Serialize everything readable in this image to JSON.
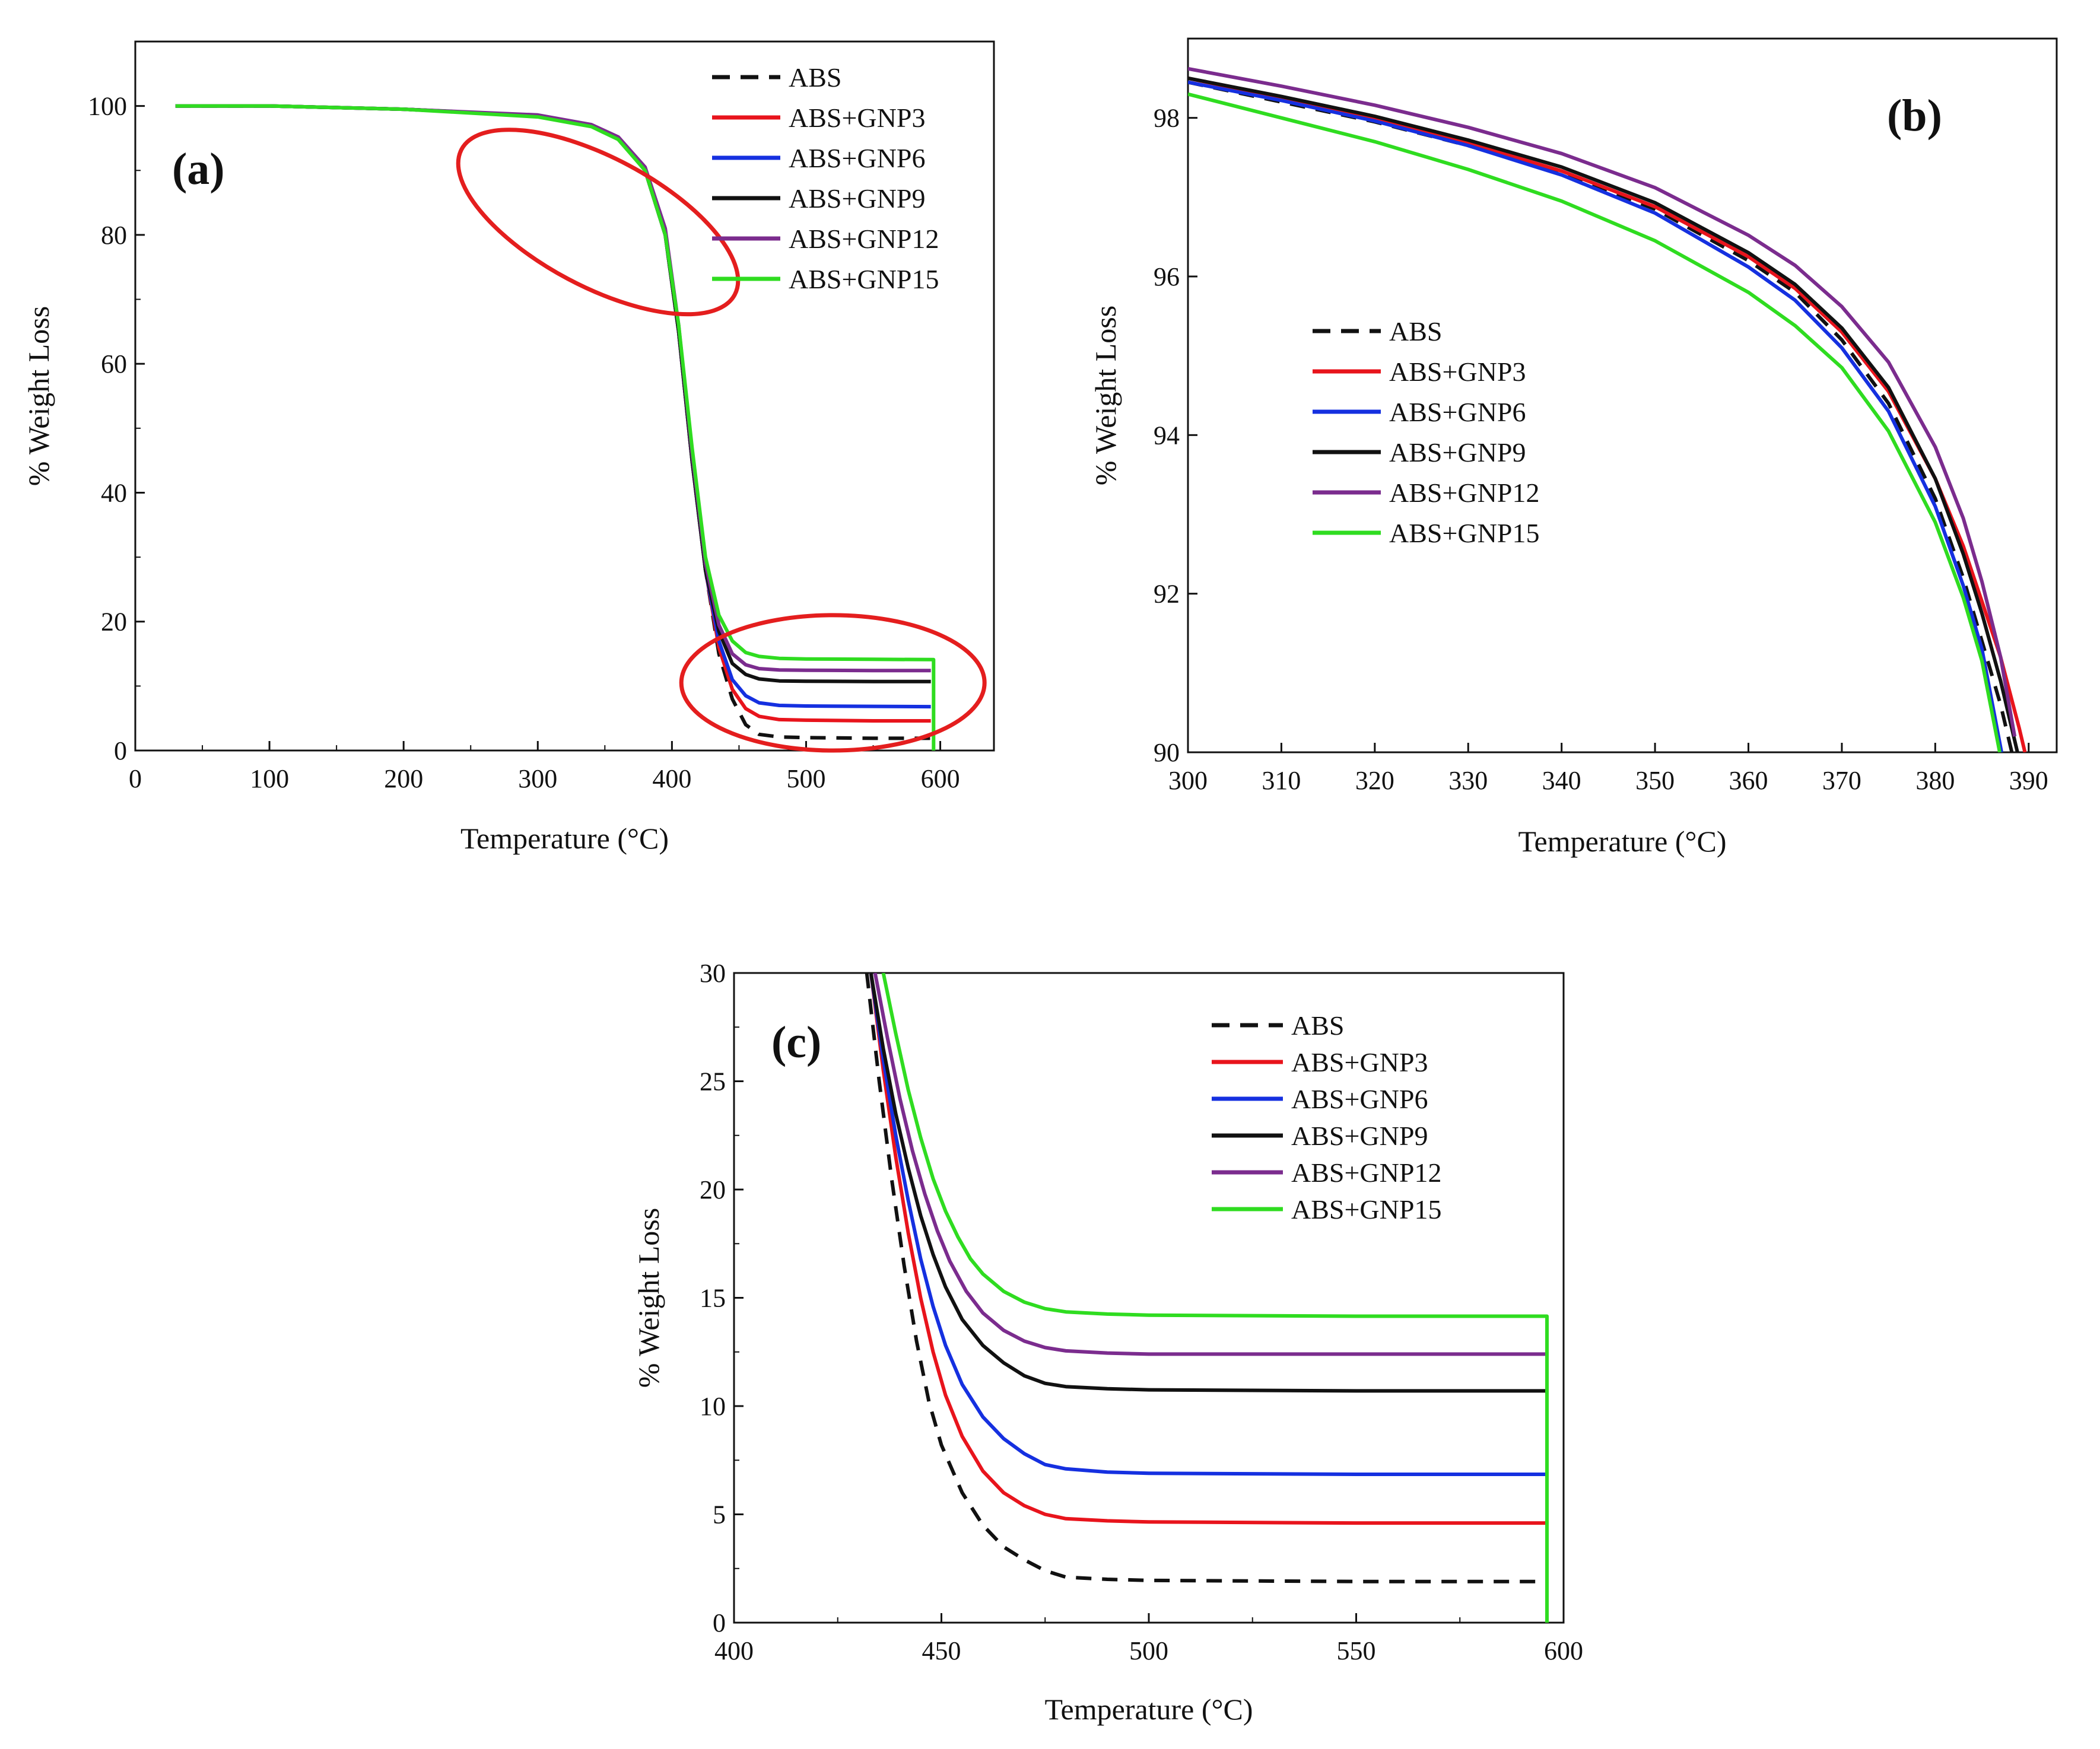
{
  "chart_data": [
    {
      "panel": "a",
      "type": "line",
      "panel_label": "(a)",
      "xlabel": "Temperature (°C)",
      "ylabel": "% Weight Loss",
      "xlim": [
        0,
        640
      ],
      "ylim": [
        0,
        110
      ],
      "xticks": [
        0,
        100,
        200,
        300,
        400,
        500,
        600
      ],
      "yticks": [
        0,
        20,
        40,
        60,
        80,
        100
      ],
      "legend_position": "top-right",
      "annotations": [
        {
          "shape": "ellipse",
          "color": "#e41e1e",
          "note": "onset region",
          "cx": 345,
          "cy": 82,
          "rx": 48,
          "ry": 24,
          "angle_deg": -62
        },
        {
          "shape": "ellipse",
          "color": "#e41e1e",
          "note": "residue region",
          "cx": 520,
          "cy": 10.5,
          "rx": 113,
          "ry": 10.5,
          "angle_deg": 0
        }
      ],
      "series": [
        {
          "name": "ABS",
          "color": "#111111",
          "dash": true,
          "x": [
            30,
            100,
            200,
            300,
            340,
            360,
            380,
            395,
            405,
            415,
            425,
            435,
            445,
            455,
            465,
            480,
            500,
            550,
            593
          ],
          "y": [
            100,
            100,
            99.5,
            98.5,
            97,
            95,
            90,
            80,
            65,
            45,
            28,
            15,
            8,
            4,
            2.5,
            2.1,
            2,
            1.9,
            1.9
          ]
        },
        {
          "name": "ABS+GNP3",
          "color": "#e8141c",
          "dash": false,
          "x": [
            30,
            100,
            200,
            300,
            340,
            360,
            380,
            395,
            405,
            415,
            425,
            435,
            445,
            455,
            465,
            480,
            500,
            550,
            593
          ],
          "y": [
            100,
            100,
            99.5,
            98.5,
            97,
            95,
            90,
            80,
            65,
            45,
            28,
            16,
            9.5,
            6.5,
            5.3,
            4.8,
            4.7,
            4.6,
            4.6
          ]
        },
        {
          "name": "ABS+GNP6",
          "color": "#1530e0",
          "dash": false,
          "x": [
            30,
            100,
            200,
            300,
            340,
            360,
            380,
            395,
            405,
            415,
            425,
            435,
            445,
            455,
            465,
            480,
            500,
            550,
            593
          ],
          "y": [
            100,
            100,
            99.5,
            98.5,
            97,
            95,
            90,
            80,
            65,
            45,
            28,
            17,
            11,
            8.5,
            7.4,
            7,
            6.9,
            6.85,
            6.8
          ]
        },
        {
          "name": "ABS+GNP9",
          "color": "#111111",
          "dash": false,
          "x": [
            30,
            100,
            200,
            300,
            340,
            360,
            380,
            395,
            405,
            415,
            425,
            435,
            445,
            455,
            465,
            480,
            500,
            550,
            593
          ],
          "y": [
            100,
            100,
            99.5,
            98.5,
            97,
            95,
            90,
            80,
            65,
            45,
            28,
            18.5,
            13.5,
            11.8,
            11.1,
            10.8,
            10.75,
            10.7,
            10.7
          ]
        },
        {
          "name": "ABS+GNP12",
          "color": "#7b2c8e",
          "dash": false,
          "x": [
            30,
            100,
            200,
            300,
            340,
            360,
            380,
            395,
            405,
            415,
            425,
            435,
            445,
            455,
            465,
            480,
            500,
            550,
            593
          ],
          "y": [
            100,
            100,
            99.5,
            98.6,
            97.1,
            95.2,
            90.5,
            81,
            66,
            46,
            29,
            19.5,
            15,
            13.3,
            12.7,
            12.5,
            12.45,
            12.4,
            12.4
          ]
        },
        {
          "name": "ABS+GNP15",
          "color": "#2fdc20",
          "dash": false,
          "x": [
            30,
            100,
            200,
            300,
            340,
            360,
            380,
            395,
            405,
            415,
            425,
            435,
            445,
            455,
            465,
            480,
            500,
            550,
            595,
            595
          ],
          "y": [
            100,
            100,
            99.5,
            98.3,
            96.8,
            94.8,
            90,
            80,
            66,
            47,
            30,
            21,
            17,
            15.2,
            14.6,
            14.3,
            14.2,
            14.15,
            14.1,
            0
          ]
        }
      ]
    },
    {
      "panel": "b",
      "type": "line",
      "panel_label": "(b)",
      "xlabel": "Temperature (°C)",
      "ylabel": "% Weight Loss",
      "xlim": [
        300,
        393
      ],
      "ylim": [
        90,
        99
      ],
      "xticks": [
        300,
        310,
        320,
        330,
        340,
        350,
        360,
        370,
        380,
        390
      ],
      "yticks": [
        90,
        92,
        94,
        96,
        98
      ],
      "legend_position": "center-left",
      "series": [
        {
          "name": "ABS",
          "color": "#111111",
          "dash": true,
          "x": [
            300,
            310,
            320,
            330,
            340,
            350,
            360,
            365,
            370,
            375,
            380,
            383,
            385,
            387,
            388.2
          ],
          "y": [
            98.45,
            98.2,
            97.95,
            97.65,
            97.3,
            96.85,
            96.2,
            95.8,
            95.2,
            94.4,
            93.2,
            92.2,
            91.4,
            90.6,
            90
          ]
        },
        {
          "name": "ABS+GNP3",
          "color": "#e8141c",
          "dash": false,
          "x": [
            300,
            310,
            320,
            330,
            340,
            350,
            360,
            365,
            370,
            375,
            380,
            383,
            385,
            387,
            389,
            389.6
          ],
          "y": [
            98.5,
            98.25,
            97.98,
            97.68,
            97.33,
            96.88,
            96.25,
            95.85,
            95.3,
            94.55,
            93.45,
            92.6,
            91.9,
            91.2,
            90.3,
            90
          ]
        },
        {
          "name": "ABS+GNP6",
          "color": "#1530e0",
          "dash": false,
          "x": [
            300,
            310,
            320,
            330,
            340,
            350,
            360,
            365,
            370,
            375,
            380,
            383,
            385,
            387.1
          ],
          "y": [
            98.45,
            98.22,
            97.96,
            97.65,
            97.28,
            96.8,
            96.12,
            95.7,
            95.1,
            94.3,
            93.1,
            92.1,
            91.3,
            90
          ]
        },
        {
          "name": "ABS+GNP9",
          "color": "#111111",
          "dash": false,
          "x": [
            300,
            310,
            320,
            330,
            340,
            350,
            360,
            365,
            370,
            375,
            380,
            383,
            385,
            387,
            388.8
          ],
          "y": [
            98.5,
            98.27,
            98.02,
            97.72,
            97.38,
            96.93,
            96.3,
            95.9,
            95.35,
            94.6,
            93.45,
            92.5,
            91.75,
            90.9,
            90
          ]
        },
        {
          "name": "ABS+GNP12",
          "color": "#7b2c8e",
          "dash": false,
          "x": [
            300,
            310,
            320,
            330,
            340,
            350,
            360,
            365,
            370,
            375,
            380,
            383,
            385,
            387,
            388.5
          ],
          "y": [
            98.62,
            98.4,
            98.16,
            97.88,
            97.55,
            97.12,
            96.52,
            96.14,
            95.62,
            94.92,
            93.85,
            92.95,
            92.15,
            91.2,
            90.2
          ]
        },
        {
          "name": "ABS+GNP15",
          "color": "#2fdc20",
          "dash": false,
          "x": [
            300,
            310,
            320,
            330,
            340,
            350,
            360,
            365,
            370,
            375,
            380,
            383,
            385,
            386.9
          ],
          "y": [
            98.3,
            98.0,
            97.7,
            97.35,
            96.95,
            96.45,
            95.8,
            95.38,
            94.85,
            94.05,
            92.9,
            91.95,
            91.15,
            90
          ]
        }
      ]
    },
    {
      "panel": "c",
      "type": "line",
      "panel_label": "(c)",
      "xlabel": "Temperature (°C)",
      "ylabel": "% Weight Loss",
      "xlim": [
        400,
        600
      ],
      "ylim": [
        0,
        30
      ],
      "xticks": [
        400,
        450,
        500,
        550,
        600
      ],
      "yticks": [
        0,
        5,
        10,
        15,
        20,
        25,
        30
      ],
      "legend_position": "top-right",
      "series": [
        {
          "name": "ABS",
          "color": "#111111",
          "dash": true,
          "x": [
            432,
            435,
            438,
            441,
            444,
            447,
            450,
            455,
            460,
            465,
            470,
            475,
            480,
            490,
            500,
            550,
            596
          ],
          "y": [
            30,
            25,
            20.5,
            16.5,
            13,
            10.2,
            8.2,
            6,
            4.5,
            3.5,
            2.9,
            2.4,
            2.1,
            2,
            1.95,
            1.9,
            1.9
          ]
        },
        {
          "name": "ABS+GNP3",
          "color": "#e8141c",
          "dash": false,
          "x": [
            433,
            436,
            439,
            442,
            445,
            448,
            451,
            455,
            460,
            465,
            470,
            475,
            480,
            490,
            500,
            550,
            596
          ],
          "y": [
            30,
            25.5,
            21.5,
            18,
            15,
            12.5,
            10.5,
            8.6,
            7,
            6,
            5.4,
            5,
            4.8,
            4.7,
            4.65,
            4.6,
            4.6
          ]
        },
        {
          "name": "ABS+GNP6",
          "color": "#1530e0",
          "dash": false,
          "x": [
            433,
            436,
            439,
            442,
            445,
            448,
            451,
            455,
            460,
            465,
            470,
            475,
            480,
            490,
            500,
            550,
            596
          ],
          "y": [
            30,
            26,
            22.5,
            19.5,
            16.8,
            14.6,
            12.8,
            11,
            9.5,
            8.5,
            7.8,
            7.3,
            7.1,
            6.95,
            6.9,
            6.85,
            6.85
          ]
        },
        {
          "name": "ABS+GNP9",
          "color": "#111111",
          "dash": false,
          "x": [
            433,
            436,
            439,
            442,
            445,
            448,
            451,
            455,
            460,
            465,
            470,
            475,
            480,
            490,
            500,
            550,
            596
          ],
          "y": [
            30,
            26.5,
            23.5,
            21,
            18.8,
            17,
            15.5,
            14,
            12.8,
            12,
            11.4,
            11.05,
            10.9,
            10.8,
            10.75,
            10.7,
            10.7
          ]
        },
        {
          "name": "ABS+GNP12",
          "color": "#7b2c8e",
          "dash": false,
          "x": [
            434,
            437,
            440,
            443,
            446,
            449,
            452,
            456,
            460,
            465,
            470,
            475,
            480,
            490,
            500,
            550,
            596
          ],
          "y": [
            30,
            27,
            24.2,
            21.8,
            19.8,
            18.1,
            16.7,
            15.3,
            14.3,
            13.5,
            13,
            12.7,
            12.55,
            12.45,
            12.4,
            12.4,
            12.4
          ]
        },
        {
          "name": "ABS+GNP15",
          "color": "#2fdc20",
          "dash": false,
          "x": [
            436,
            439,
            442,
            445,
            448,
            451,
            454,
            457,
            460,
            465,
            470,
            475,
            480,
            490,
            500,
            550,
            596,
            596
          ],
          "y": [
            30,
            27.2,
            24.6,
            22.4,
            20.5,
            19,
            17.8,
            16.8,
            16.1,
            15.3,
            14.8,
            14.5,
            14.35,
            14.25,
            14.2,
            14.15,
            14.15,
            0
          ]
        }
      ]
    }
  ]
}
